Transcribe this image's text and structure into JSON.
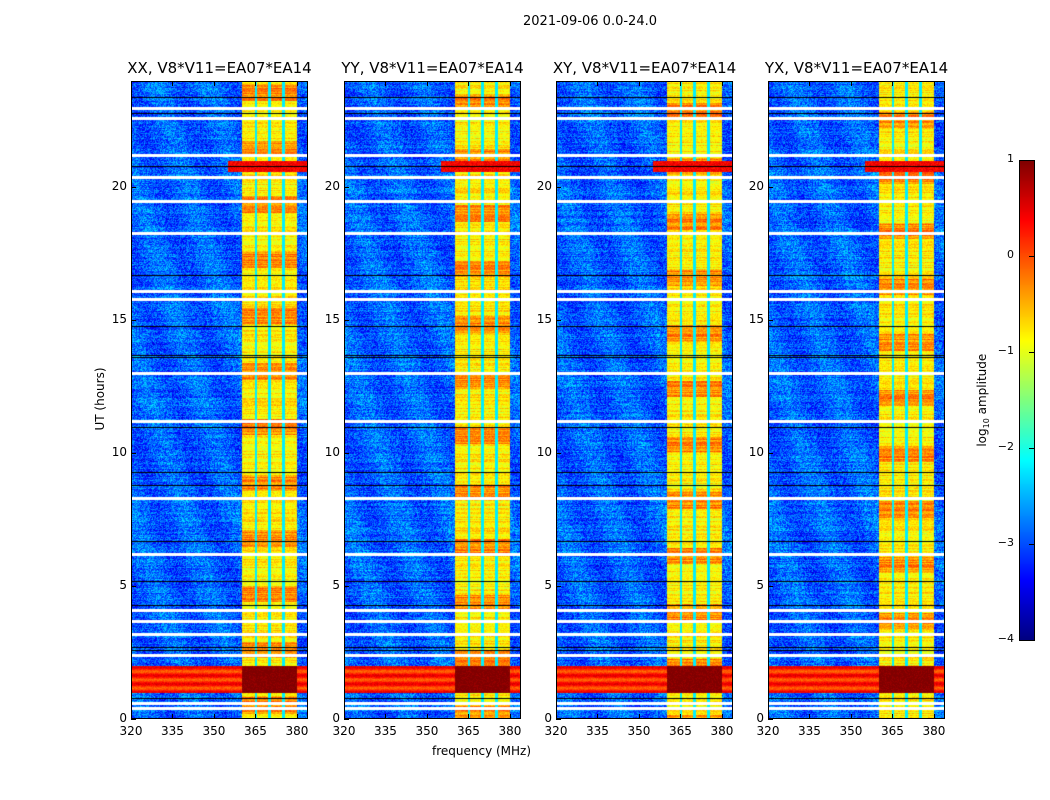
{
  "chart_data": {
    "type": "heatmap",
    "title": "2021-09-06 0.0-24.0",
    "xlabel": "frequency (MHz)",
    "ylabel": "UT (hours)",
    "xlim": [
      320,
      384
    ],
    "ylim": [
      0,
      24
    ],
    "xticks": [
      320,
      335,
      350,
      365,
      380
    ],
    "yticks": [
      0,
      5,
      10,
      15,
      20
    ],
    "panels": [
      {
        "title": "XX, V8*V11=EA07*EA14"
      },
      {
        "title": "YY, V8*V11=EA07*EA14"
      },
      {
        "title": "XY, V8*V11=EA07*EA14"
      },
      {
        "title": "YX, V8*V11=EA07*EA14"
      }
    ],
    "colorbar": {
      "label_prefix": "log",
      "label_sub": "10",
      "label_suffix": " amplitude",
      "range": [
        -4,
        1
      ],
      "ticks": [
        "1",
        "0",
        "−1",
        "−2",
        "−3",
        "−4"
      ],
      "colormap": "jet"
    },
    "features": {
      "background_log_amp": -2.9,
      "band_MHz": [
        360,
        380
      ],
      "band_log_amp": -0.8,
      "subband_gaps_MHz": [
        365,
        370,
        375
      ],
      "strong_rfi_hours": [
        1.0,
        2.0
      ],
      "strong_rfi_hours_2": [
        20.6,
        21.0
      ],
      "flagged_white_hours": [
        0.4,
        0.6,
        2.4,
        3.2,
        3.7,
        4.1,
        6.2,
        8.3,
        11.2,
        13.0,
        15.8,
        16.1,
        18.3,
        19.5,
        20.4,
        21.2,
        22.6,
        23.0
      ],
      "flagged_black_hours": [
        0.8,
        2.6,
        2.7,
        4.3,
        5.2,
        6.7,
        8.8,
        9.3,
        11.0,
        13.6,
        13.7,
        14.8,
        16.7,
        20.8,
        22.8,
        23.4
      ]
    }
  }
}
